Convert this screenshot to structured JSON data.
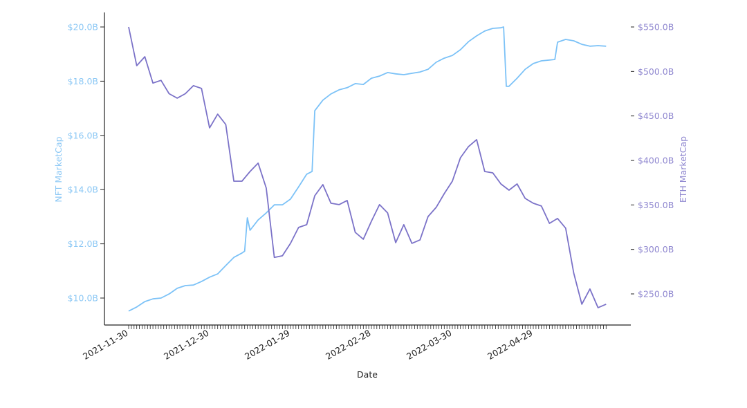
{
  "chart_data": {
    "type": "line",
    "xlabel": "Date",
    "x_tick_labels": [
      "2021-11-30",
      "2021-12-30",
      "2022-01-29",
      "2022-02-28",
      "2022-03-30",
      "2022-04-29"
    ],
    "x_range": [
      "2021-11-30",
      "2022-05-26"
    ],
    "grid": false,
    "legend": "none",
    "left_axis": {
      "label": "NFT MarketCap",
      "ticks": [
        10,
        12,
        14,
        16,
        18,
        20
      ],
      "tick_labels": [
        "$10.0B",
        "$12.0B",
        "$14.0B",
        "$16.0B",
        "$18.0B",
        "$20.0B"
      ],
      "unit": "billion USD",
      "color": "#8cc8f5"
    },
    "right_axis": {
      "label": "ETH MarketCap",
      "ticks": [
        250,
        300,
        350,
        400,
        450,
        500,
        550
      ],
      "tick_labels": [
        "$250.0B",
        "$300.0B",
        "$350.0B",
        "$400.0B",
        "$450.0B",
        "$500.0B",
        "$550.0B"
      ],
      "unit": "billion USD",
      "color": "#9088d0"
    },
    "series": [
      {
        "axis": "left",
        "color": "#7cc2f7",
        "points": [
          [
            "2021-11-30",
            9.52
          ],
          [
            "2021-12-03",
            9.67
          ],
          [
            "2021-12-06",
            9.87
          ],
          [
            "2021-12-09",
            9.97
          ],
          [
            "2021-12-12",
            10.0
          ],
          [
            "2021-12-15",
            10.15
          ],
          [
            "2021-12-18",
            10.36
          ],
          [
            "2021-12-21",
            10.46
          ],
          [
            "2021-12-24",
            10.48
          ],
          [
            "2021-12-27",
            10.61
          ],
          [
            "2021-12-30",
            10.77
          ],
          [
            "2022-01-02",
            10.89
          ],
          [
            "2022-01-05",
            11.2
          ],
          [
            "2022-01-08",
            11.5
          ],
          [
            "2022-01-11",
            11.66
          ],
          [
            "2022-01-12",
            11.73
          ],
          [
            "2022-01-13",
            12.96
          ],
          [
            "2022-01-14",
            12.5
          ],
          [
            "2022-01-17",
            12.88
          ],
          [
            "2022-01-20",
            13.14
          ],
          [
            "2022-01-23",
            13.44
          ],
          [
            "2022-01-26",
            13.44
          ],
          [
            "2022-01-29",
            13.65
          ],
          [
            "2022-02-01",
            14.1
          ],
          [
            "2022-02-04",
            14.57
          ],
          [
            "2022-02-06",
            14.67
          ],
          [
            "2022-02-07",
            16.91
          ],
          [
            "2022-02-10",
            17.3
          ],
          [
            "2022-02-13",
            17.53
          ],
          [
            "2022-02-16",
            17.68
          ],
          [
            "2022-02-19",
            17.76
          ],
          [
            "2022-02-22",
            17.91
          ],
          [
            "2022-02-25",
            17.88
          ],
          [
            "2022-02-28",
            18.11
          ],
          [
            "2022-03-03",
            18.19
          ],
          [
            "2022-03-06",
            18.32
          ],
          [
            "2022-03-09",
            18.27
          ],
          [
            "2022-03-12",
            18.24
          ],
          [
            "2022-03-15",
            18.29
          ],
          [
            "2022-03-18",
            18.34
          ],
          [
            "2022-03-21",
            18.44
          ],
          [
            "2022-03-24",
            18.7
          ],
          [
            "2022-03-27",
            18.85
          ],
          [
            "2022-03-30",
            18.95
          ],
          [
            "2022-04-02",
            19.16
          ],
          [
            "2022-04-05",
            19.46
          ],
          [
            "2022-04-08",
            19.67
          ],
          [
            "2022-04-11",
            19.85
          ],
          [
            "2022-04-14",
            19.95
          ],
          [
            "2022-04-17",
            19.97
          ],
          [
            "2022-04-18",
            20.0
          ],
          [
            "2022-04-19",
            17.81
          ],
          [
            "2022-04-20",
            17.81
          ],
          [
            "2022-04-23",
            18.11
          ],
          [
            "2022-04-26",
            18.44
          ],
          [
            "2022-04-29",
            18.65
          ],
          [
            "2022-05-02",
            18.75
          ],
          [
            "2022-05-05",
            18.78
          ],
          [
            "2022-05-07",
            18.8
          ],
          [
            "2022-05-08",
            19.44
          ],
          [
            "2022-05-11",
            19.54
          ],
          [
            "2022-05-14",
            19.49
          ],
          [
            "2022-05-17",
            19.36
          ],
          [
            "2022-05-20",
            19.29
          ],
          [
            "2022-05-23",
            19.31
          ],
          [
            "2022-05-26",
            19.29
          ]
        ]
      },
      {
        "axis": "right",
        "color": "#7b72c8",
        "points": [
          [
            "2021-11-30",
            550
          ],
          [
            "2021-12-03",
            506.5
          ],
          [
            "2021-12-06",
            516.6
          ],
          [
            "2021-12-09",
            487
          ],
          [
            "2021-12-12",
            490
          ],
          [
            "2021-12-15",
            475
          ],
          [
            "2021-12-18",
            470
          ],
          [
            "2021-12-21",
            475
          ],
          [
            "2021-12-24",
            484
          ],
          [
            "2021-12-27",
            481
          ],
          [
            "2021-12-30",
            436.6
          ],
          [
            "2022-01-02",
            452
          ],
          [
            "2022-01-05",
            440.4
          ],
          [
            "2022-01-08",
            376.7
          ],
          [
            "2022-01-11",
            376.7
          ],
          [
            "2022-01-14",
            387.6
          ],
          [
            "2022-01-17",
            397
          ],
          [
            "2022-01-20",
            369
          ],
          [
            "2022-01-23",
            291
          ],
          [
            "2022-01-26",
            292.8
          ],
          [
            "2022-01-29",
            306.8
          ],
          [
            "2022-02-01",
            324.7
          ],
          [
            "2022-02-04",
            327.8
          ],
          [
            "2022-02-07",
            360.4
          ],
          [
            "2022-02-10",
            372.8
          ],
          [
            "2022-02-13",
            351.9
          ],
          [
            "2022-02-16",
            350.3
          ],
          [
            "2022-02-19",
            355
          ],
          [
            "2022-02-22",
            319.2
          ],
          [
            "2022-02-25",
            311.5
          ],
          [
            "2022-02-28",
            331.7
          ],
          [
            "2022-03-03",
            350.3
          ],
          [
            "2022-03-06",
            341
          ],
          [
            "2022-03-09",
            307.6
          ],
          [
            "2022-03-12",
            327.8
          ],
          [
            "2022-03-15",
            306.8
          ],
          [
            "2022-03-18",
            310.7
          ],
          [
            "2022-03-21",
            337
          ],
          [
            "2022-03-24",
            347.2
          ],
          [
            "2022-03-27",
            362.7
          ],
          [
            "2022-03-30",
            376.7
          ],
          [
            "2022-04-02",
            403
          ],
          [
            "2022-04-05",
            415.6
          ],
          [
            "2022-04-08",
            423.4
          ],
          [
            "2022-04-11",
            387.6
          ],
          [
            "2022-04-14",
            386
          ],
          [
            "2022-04-17",
            373.6
          ],
          [
            "2022-04-20",
            366.6
          ],
          [
            "2022-04-23",
            373.6
          ],
          [
            "2022-04-26",
            357.3
          ],
          [
            "2022-04-29",
            351.9
          ],
          [
            "2022-05-02",
            348.8
          ],
          [
            "2022-05-05",
            329.3
          ],
          [
            "2022-05-08",
            334.8
          ],
          [
            "2022-05-11",
            323.9
          ],
          [
            "2022-05-14",
            273.4
          ],
          [
            "2022-05-17",
            238.4
          ],
          [
            "2022-05-20",
            255.5
          ],
          [
            "2022-05-23",
            234.5
          ],
          [
            "2022-05-26",
            238.4
          ]
        ]
      }
    ]
  }
}
